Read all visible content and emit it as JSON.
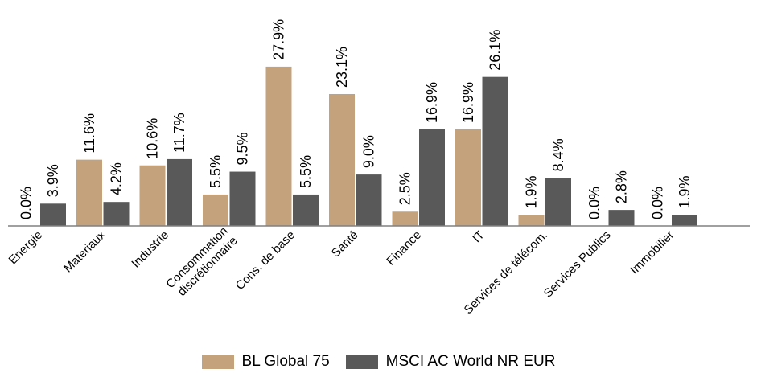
{
  "chart_data": {
    "type": "bar",
    "categories": [
      "Energie",
      "Materiaux",
      "Industrie",
      "Consommation discrétionnaire",
      "Cons. de base",
      "Santé",
      "Finance",
      "IT",
      "Services de télécom.",
      "Services Publics",
      "Immobilier"
    ],
    "category_lines": [
      [
        "Energie"
      ],
      [
        "Materiaux"
      ],
      [
        "Industrie"
      ],
      [
        "Consommation",
        "discrétionnaire"
      ],
      [
        "Cons. de base"
      ],
      [
        "Santé"
      ],
      [
        "Finance"
      ],
      [
        "IT"
      ],
      [
        "Services de télécom."
      ],
      [
        "Services Publics"
      ],
      [
        "Immobilier"
      ]
    ],
    "series": [
      {
        "name": "BL Global 75",
        "color": "#C4A37C",
        "values": [
          0.0,
          11.6,
          10.6,
          5.5,
          27.9,
          23.1,
          2.5,
          16.9,
          1.9,
          0.0,
          0.0
        ],
        "labels": [
          "0.0%",
          "11.6%",
          "10.6%",
          "5.5%",
          "27.9%",
          "23.1%",
          "2.5%",
          "16.9%",
          "1.9%",
          "0.0%",
          "0.0%"
        ]
      },
      {
        "name": "MSCI AC World NR EUR",
        "color": "#595959",
        "values": [
          3.9,
          4.2,
          11.7,
          9.5,
          5.5,
          9.0,
          16.9,
          26.1,
          8.4,
          2.8,
          1.9
        ],
        "labels": [
          "3.9%",
          "4.2%",
          "11.7%",
          "9.5%",
          "5.5%",
          "9.0%",
          "16.9%",
          "26.1%",
          "8.4%",
          "2.8%",
          "1.9%"
        ]
      }
    ],
    "ylim": [
      0,
      28
    ],
    "grid": false,
    "legend": "bottom"
  }
}
